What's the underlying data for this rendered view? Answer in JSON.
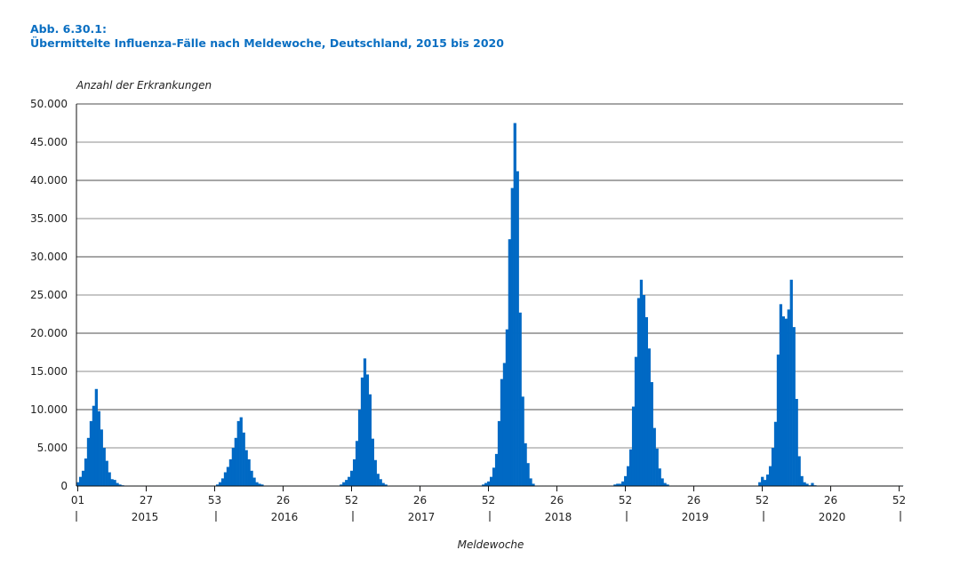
{
  "chart_data": {
    "type": "bar",
    "title_line1": "Abb. 6.30.1:",
    "title": "Übermittelte Influenza-Fälle nach Meldewoche, Deutschland, 2015 bis 2020",
    "ylabel": "Anzahl der Erkrankungen",
    "xlabel": "Meldewoche",
    "ylim": [
      0,
      50000
    ],
    "yticks": [
      0,
      5000,
      10000,
      15000,
      20000,
      25000,
      30000,
      35000,
      40000,
      45000,
      50000
    ],
    "ytick_labels": [
      "0",
      "5.000",
      "10.000",
      "15.000",
      "20.000",
      "25.000",
      "30.000",
      "35.000",
      "40.000",
      "45.000",
      "50.000"
    ],
    "total_weeks": 314,
    "xticks": [
      {
        "week_index": 0,
        "label": "01"
      },
      {
        "week_index": 26,
        "label": "27"
      },
      {
        "week_index": 52,
        "label": "53"
      },
      {
        "week_index": 78,
        "label": "26"
      },
      {
        "week_index": 104,
        "label": "52"
      },
      {
        "week_index": 130,
        "label": "26"
      },
      {
        "week_index": 156,
        "label": "52"
      },
      {
        "week_index": 182,
        "label": "26"
      },
      {
        "week_index": 208,
        "label": "52"
      },
      {
        "week_index": 234,
        "label": "26"
      },
      {
        "week_index": 260,
        "label": "52"
      },
      {
        "week_index": 286,
        "label": "26"
      },
      {
        "week_index": 312,
        "label": "52"
      }
    ],
    "years": [
      {
        "label": "2015",
        "start_index": 0,
        "end_index": 53
      },
      {
        "label": "2016",
        "start_index": 53,
        "end_index": 105
      },
      {
        "label": "2017",
        "start_index": 105,
        "end_index": 157
      },
      {
        "label": "2018",
        "start_index": 157,
        "end_index": 209
      },
      {
        "label": "2019",
        "start_index": 209,
        "end_index": 261
      },
      {
        "label": "2020",
        "start_index": 261,
        "end_index": 314
      }
    ],
    "baseline_value": 60,
    "seasons": [
      {
        "start_index": 0,
        "values": [
          500,
          1200,
          2000,
          3600,
          6300,
          8500,
          10500,
          12700,
          9800,
          7400,
          5000,
          3300,
          1800,
          900,
          800,
          400,
          200,
          100
        ]
      },
      {
        "start_index": 53,
        "values": [
          200,
          500,
          1000,
          1800,
          2500,
          3500,
          5000,
          6300,
          8500,
          9000,
          7000,
          4700,
          3500,
          2000,
          1100,
          500,
          300,
          200
        ]
      },
      {
        "start_index": 100,
        "values": [
          200,
          500,
          800,
          1200,
          2000,
          3500,
          5900,
          10000,
          14200,
          16700,
          14600,
          12000,
          6200,
          3400,
          1600,
          900,
          400,
          200
        ]
      },
      {
        "start_index": 154,
        "values": [
          200,
          400,
          600,
          1200,
          2400,
          4200,
          8500,
          14000,
          16100,
          20500,
          32300,
          39000,
          47500,
          41200,
          22700,
          11700,
          5600,
          3000,
          1000,
          300
        ]
      },
      {
        "start_index": 204,
        "values": [
          200,
          300,
          300,
          600,
          1300,
          2600,
          4800,
          10400,
          16900,
          24600,
          27000,
          25000,
          22100,
          18000,
          13600,
          7600,
          4900,
          2300,
          1000,
          400,
          200
        ]
      },
      {
        "start_index": 259,
        "values": [
          500,
          1200,
          800,
          1500,
          2600,
          5000,
          8400,
          17200,
          23800,
          22200,
          21900,
          23100,
          27000,
          20800,
          11400,
          3900,
          1300,
          500,
          300,
          100,
          400,
          100
        ]
      }
    ]
  },
  "colors": {
    "bar": "#0069c4",
    "title": "#0a6fc2"
  }
}
